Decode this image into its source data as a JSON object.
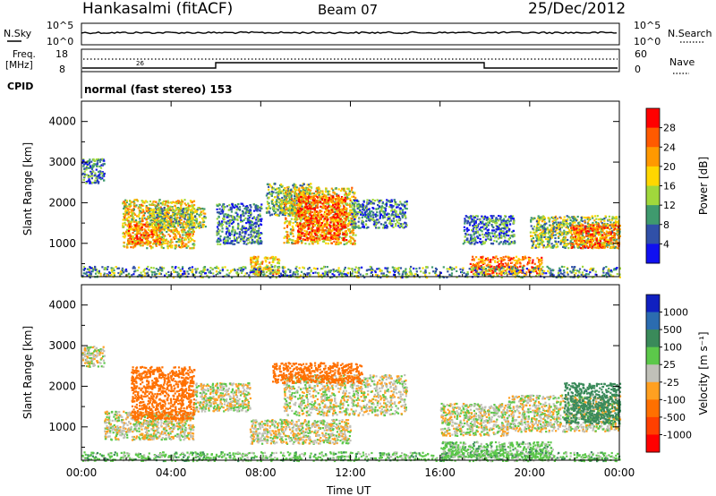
{
  "header": {
    "station": "Hankasalmi (fitACF)",
    "beam": "Beam 07",
    "date": "25/Dec/2012"
  },
  "params": {
    "nsky_label": "N.Sky",
    "nsky_ticks": [
      "10^5",
      "10^0"
    ],
    "nsearch_label": "N.Search",
    "nsearch_ticks": [
      "10^5",
      "10^0"
    ],
    "freq_label_1": "Freq.",
    "freq_label_2": "[MHz]",
    "freq_ticks": [
      "18",
      "8"
    ],
    "freq_marker": "26",
    "nave_label": "Nave",
    "nave_ticks": [
      "60",
      "0"
    ],
    "cpid_label": "CPID",
    "cpid_value": "normal (fast stereo) 153",
    "colors": {
      "line": "#000000"
    }
  },
  "chart_data": [
    {
      "type": "heatmap",
      "name": "power",
      "ylabel": "Slant Range [km]",
      "x_ticks": [
        "00:00",
        "04:00",
        "08:00",
        "12:00",
        "16:00",
        "20:00",
        "00:00"
      ],
      "xlim_hours": [
        0,
        24
      ],
      "ylim": [
        180,
        4500
      ],
      "y_ticks": [
        1000,
        2000,
        3000,
        4000
      ],
      "colorbar": {
        "label": "Power [dB]",
        "ticks": [
          "28",
          "24",
          "20",
          "16",
          "12",
          "8",
          "4"
        ],
        "colors": [
          "#ff0000",
          "#ff5a00",
          "#ff9900",
          "#ffd700",
          "#a0d83c",
          "#3f9a6e",
          "#3050a8",
          "#1010f0"
        ]
      },
      "regions": [
        {
          "t0": 0.0,
          "t1": 1.0,
          "r0": 2500,
          "r1": 3100,
          "value": 8
        },
        {
          "t0": 1.8,
          "t1": 5.0,
          "r0": 900,
          "r1": 2100,
          "value": 18
        },
        {
          "t0": 2.0,
          "t1": 3.5,
          "r0": 1000,
          "r1": 1500,
          "value": 24
        },
        {
          "t0": 3.0,
          "t1": 5.5,
          "r0": 1400,
          "r1": 1900,
          "value": 14
        },
        {
          "t0": 6.0,
          "t1": 8.0,
          "r0": 1000,
          "r1": 2000,
          "value": 8
        },
        {
          "t0": 7.5,
          "t1": 8.8,
          "r0": 250,
          "r1": 700,
          "value": 20
        },
        {
          "t0": 8.2,
          "t1": 10.2,
          "r0": 1700,
          "r1": 2500,
          "value": 12
        },
        {
          "t0": 9.0,
          "t1": 12.2,
          "r0": 1000,
          "r1": 2400,
          "value": 18
        },
        {
          "t0": 9.6,
          "t1": 11.8,
          "r0": 1100,
          "r1": 2200,
          "value": 26
        },
        {
          "t0": 12.0,
          "t1": 14.5,
          "r0": 1400,
          "r1": 2100,
          "value": 8
        },
        {
          "t0": 17.0,
          "t1": 19.3,
          "r0": 1000,
          "r1": 1700,
          "value": 8
        },
        {
          "t0": 17.3,
          "t1": 20.5,
          "r0": 250,
          "r1": 700,
          "value": 24
        },
        {
          "t0": 20.0,
          "t1": 24.0,
          "r0": 900,
          "r1": 1700,
          "value": 14
        },
        {
          "t0": 21.8,
          "t1": 24.0,
          "r0": 900,
          "r1": 1500,
          "value": 24
        },
        {
          "t0": 0.0,
          "t1": 24.0,
          "r0": 180,
          "r1": 450,
          "value": 10
        }
      ]
    },
    {
      "type": "heatmap",
      "name": "velocity",
      "ylabel": "Slant Range [km]",
      "xlabel": "Time UT",
      "x_ticks": [
        "00:00",
        "04:00",
        "08:00",
        "12:00",
        "16:00",
        "20:00",
        "00:00"
      ],
      "xlim_hours": [
        0,
        24
      ],
      "ylim": [
        180,
        4500
      ],
      "y_ticks": [
        1000,
        2000,
        3000,
        4000
      ],
      "colorbar": {
        "label": "Velocity [m s⁻¹]",
        "ticks": [
          "1000",
          "500",
          "100",
          "25",
          "-25",
          "-100",
          "-500",
          "-1000"
        ],
        "colors": [
          "#1020c0",
          "#2b6cb0",
          "#3a8a5a",
          "#5cc84a",
          "#c0c0b8",
          "#ffa020",
          "#ff7000",
          "#ff4000",
          "#ff0000"
        ]
      },
      "regions": [
        {
          "t0": 0.0,
          "t1": 1.0,
          "r0": 2500,
          "r1": 3000,
          "value": 0
        },
        {
          "t0": 1.0,
          "t1": 5.0,
          "r0": 700,
          "r1": 1400,
          "value": 0
        },
        {
          "t0": 2.2,
          "t1": 5.0,
          "r0": 1200,
          "r1": 2500,
          "value": -200
        },
        {
          "t0": 5.0,
          "t1": 7.5,
          "r0": 1400,
          "r1": 2100,
          "value": 0
        },
        {
          "t0": 7.5,
          "t1": 12.0,
          "r0": 600,
          "r1": 1200,
          "value": 0
        },
        {
          "t0": 9.0,
          "t1": 14.5,
          "r0": 1300,
          "r1": 2300,
          "value": 0
        },
        {
          "t0": 8.5,
          "t1": 12.5,
          "r0": 2100,
          "r1": 2600,
          "value": -200
        },
        {
          "t0": 16.0,
          "t1": 19.0,
          "r0": 800,
          "r1": 1600,
          "value": 0
        },
        {
          "t0": 16.0,
          "t1": 21.0,
          "r0": 250,
          "r1": 650,
          "value": 60
        },
        {
          "t0": 19.0,
          "t1": 24.0,
          "r0": 900,
          "r1": 1800,
          "value": 0
        },
        {
          "t0": 21.5,
          "t1": 24.0,
          "r0": 1100,
          "r1": 2100,
          "value": 200
        },
        {
          "t0": 0.0,
          "t1": 24.0,
          "r0": 180,
          "r1": 400,
          "value": 60
        }
      ]
    }
  ]
}
